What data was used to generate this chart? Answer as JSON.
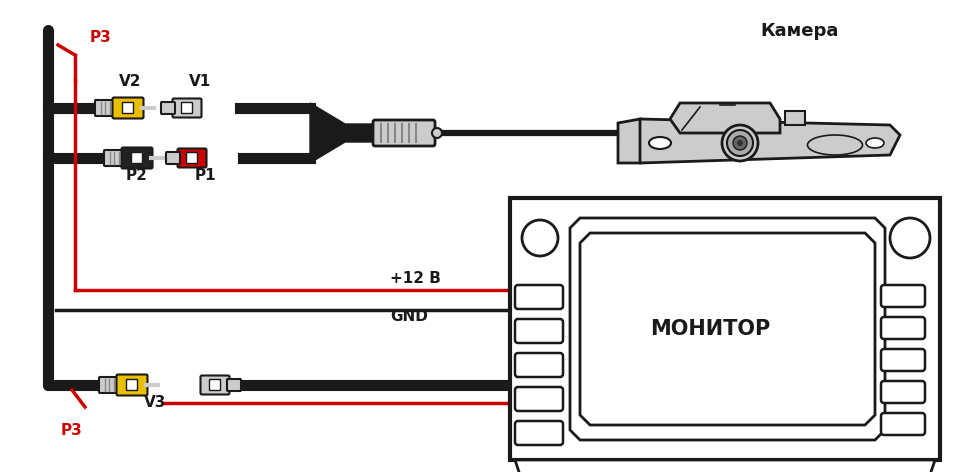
{
  "bg_color": "#ffffff",
  "blk": "#1a1a1a",
  "red": "#cc0000",
  "yel": "#e8c000",
  "lgry": "#cccccc",
  "dgry": "#888888",
  "label_P3": "P3",
  "label_V1": "V1",
  "label_V2": "V2",
  "label_P1": "P1",
  "label_P2": "P2",
  "label_V3": "V3",
  "label_camera": "Камера",
  "label_monitor": "МОНИТОР",
  "label_12v": "+12 В",
  "label_gnd": "GND",
  "figsize": [
    9.6,
    4.72
  ],
  "dpi": 100
}
